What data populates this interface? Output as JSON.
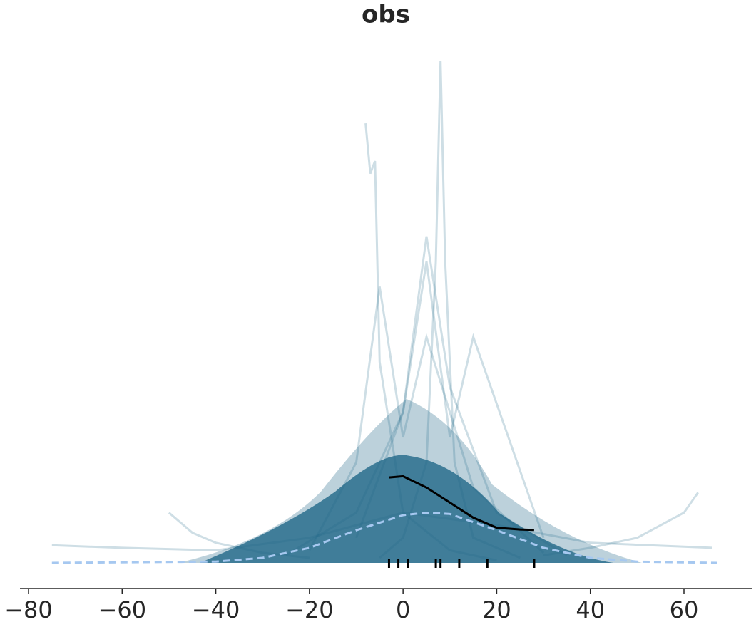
{
  "chart_data": {
    "type": "ppc",
    "title": "obs",
    "xlim": [
      -82,
      75
    ],
    "ylim": [
      0,
      0.2
    ],
    "xticks": [
      {
        "value": -80,
        "label": "−80"
      },
      {
        "value": -60,
        "label": "−60"
      },
      {
        "value": -40,
        "label": "−40"
      },
      {
        "value": -20,
        "label": "−20"
      },
      0,
      20,
      40,
      60
    ],
    "predictive_color": "#1f6788",
    "samples": [
      {
        "x": [
          -5,
          0,
          5,
          7,
          8,
          9,
          11,
          15,
          25
        ],
        "values": [
          0.002,
          0.01,
          0.04,
          0.12,
          0.2,
          0.12,
          0.04,
          0.01,
          0.002
        ]
      },
      {
        "x": [
          -8,
          -7,
          -6,
          -5,
          0,
          10,
          20
        ],
        "values": [
          0.175,
          0.155,
          0.16,
          0.08,
          0.02,
          0.005,
          0.001
        ]
      },
      {
        "x": [
          -25,
          -10,
          0,
          5,
          10,
          20,
          35
        ],
        "values": [
          0.003,
          0.02,
          0.06,
          0.13,
          0.07,
          0.02,
          0.003
        ]
      },
      {
        "x": [
          -75,
          -60,
          -40,
          -20,
          0,
          20,
          40,
          66
        ],
        "values": [
          0.007,
          0.006,
          0.005,
          0.01,
          0.02,
          0.015,
          0.008,
          0.006
        ]
      },
      {
        "x": [
          -50,
          -45,
          -40,
          -30,
          -20
        ],
        "values": [
          0.02,
          0.012,
          0.008,
          0.004,
          0.002
        ]
      },
      {
        "x": [
          30,
          40,
          50,
          60,
          63
        ],
        "values": [
          0.003,
          0.006,
          0.01,
          0.02,
          0.028
        ]
      },
      {
        "x": [
          -20,
          -10,
          -5,
          0,
          5,
          15,
          30
        ],
        "values": [
          0.005,
          0.04,
          0.11,
          0.05,
          0.09,
          0.03,
          0.004
        ]
      },
      {
        "x": [
          -10,
          0,
          5,
          10,
          15,
          30
        ],
        "values": [
          0.01,
          0.06,
          0.12,
          0.05,
          0.09,
          0.01
        ]
      }
    ],
    "observed": {
      "color": "#000000",
      "x": [
        -3,
        0,
        5,
        10,
        15,
        20,
        25,
        28
      ],
      "values": [
        0.034,
        0.0345,
        0.03,
        0.024,
        0.018,
        0.014,
        0.0133,
        0.0131
      ]
    },
    "predictive_mean": {
      "color": "#a6c8f0",
      "x": [
        -75,
        -40,
        -30,
        -20,
        -10,
        0,
        5,
        10,
        20,
        30,
        40,
        50,
        67
      ],
      "values": [
        0,
        0.0005,
        0.002,
        0.006,
        0.013,
        0.019,
        0.02,
        0.0195,
        0.013,
        0.006,
        0.002,
        0.0005,
        0
      ]
    },
    "rug": [
      -3,
      -1,
      1,
      7,
      8,
      12,
      18,
      28
    ]
  }
}
